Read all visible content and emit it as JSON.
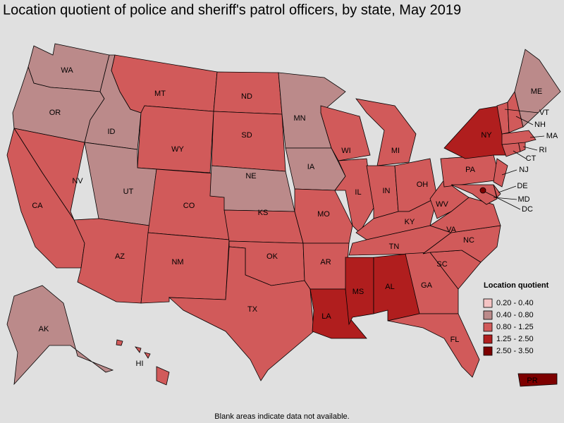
{
  "title": "Location quotient of police and sheriff's patrol officers, by state, May 2019",
  "legend": {
    "title": "Location quotient",
    "bins": [
      {
        "label": "0.20 - 0.40",
        "color": "#f5c4c4"
      },
      {
        "label": "0.40 - 0.80",
        "color": "#bb8a8a"
      },
      {
        "label": "0.80 - 1.25",
        "color": "#d15a5a"
      },
      {
        "label": "1.25 - 2.50",
        "color": "#b01e1e"
      },
      {
        "label": "2.50 - 3.50",
        "color": "#7d0000"
      }
    ]
  },
  "states": [
    {
      "label": "WA",
      "color": "#bb8a8a"
    },
    {
      "label": "OR",
      "color": "#bb8a8a"
    },
    {
      "label": "ID",
      "color": "#bb8a8a"
    },
    {
      "label": "MT",
      "color": "#d15a5a"
    },
    {
      "label": "WY",
      "color": "#d15a5a"
    },
    {
      "label": "NV",
      "color": "#d15a5a"
    },
    {
      "label": "CA",
      "color": "#d15a5a"
    },
    {
      "label": "UT",
      "color": "#bb8a8a"
    },
    {
      "label": "AZ",
      "color": "#d15a5a"
    },
    {
      "label": "CO",
      "color": "#d15a5a"
    },
    {
      "label": "NM",
      "color": "#d15a5a"
    },
    {
      "label": "ND",
      "color": "#d15a5a"
    },
    {
      "label": "SD",
      "color": "#d15a5a"
    },
    {
      "label": "NE",
      "color": "#bb8a8a"
    },
    {
      "label": "KS",
      "color": "#d15a5a"
    },
    {
      "label": "OK",
      "color": "#d15a5a"
    },
    {
      "label": "TX",
      "color": "#d15a5a"
    },
    {
      "label": "MN",
      "color": "#bb8a8a"
    },
    {
      "label": "IA",
      "color": "#bb8a8a"
    },
    {
      "label": "MO",
      "color": "#d15a5a"
    },
    {
      "label": "AR",
      "color": "#d15a5a"
    },
    {
      "label": "LA",
      "color": "#b01e1e"
    },
    {
      "label": "WI",
      "color": "#d15a5a"
    },
    {
      "label": "IL",
      "color": "#d15a5a"
    },
    {
      "label": "MI",
      "color": "#d15a5a"
    },
    {
      "label": "IN",
      "color": "#d15a5a"
    },
    {
      "label": "OH",
      "color": "#d15a5a"
    },
    {
      "label": "KY",
      "color": "#d15a5a"
    },
    {
      "label": "TN",
      "color": "#d15a5a"
    },
    {
      "label": "MS",
      "color": "#b01e1e"
    },
    {
      "label": "AL",
      "color": "#b01e1e"
    },
    {
      "label": "GA",
      "color": "#d15a5a"
    },
    {
      "label": "FL",
      "color": "#d15a5a"
    },
    {
      "label": "SC",
      "color": "#d15a5a"
    },
    {
      "label": "NC",
      "color": "#d15a5a"
    },
    {
      "label": "VA",
      "color": "#d15a5a"
    },
    {
      "label": "WV",
      "color": "#d15a5a"
    },
    {
      "label": "PA",
      "color": "#d15a5a"
    },
    {
      "label": "NY",
      "color": "#b01e1e"
    },
    {
      "label": "NJ",
      "color": "#d15a5a"
    },
    {
      "label": "DE",
      "color": "#d15a5a"
    },
    {
      "label": "MD",
      "color": "#d15a5a"
    },
    {
      "label": "DC",
      "color": "#7d0000"
    },
    {
      "label": "CT",
      "color": "#d15a5a"
    },
    {
      "label": "RI",
      "color": "#d15a5a"
    },
    {
      "label": "MA",
      "color": "#d15a5a"
    },
    {
      "label": "VT",
      "color": "#d15a5a"
    },
    {
      "label": "NH",
      "color": "#d15a5a"
    },
    {
      "label": "ME",
      "color": "#bb8a8a"
    },
    {
      "label": "AK",
      "color": "#bb8a8a"
    },
    {
      "label": "HI",
      "color": "#d15a5a"
    },
    {
      "label": "PR",
      "color": "#7d0000"
    }
  ],
  "note": "Blank areas indicate data not available."
}
